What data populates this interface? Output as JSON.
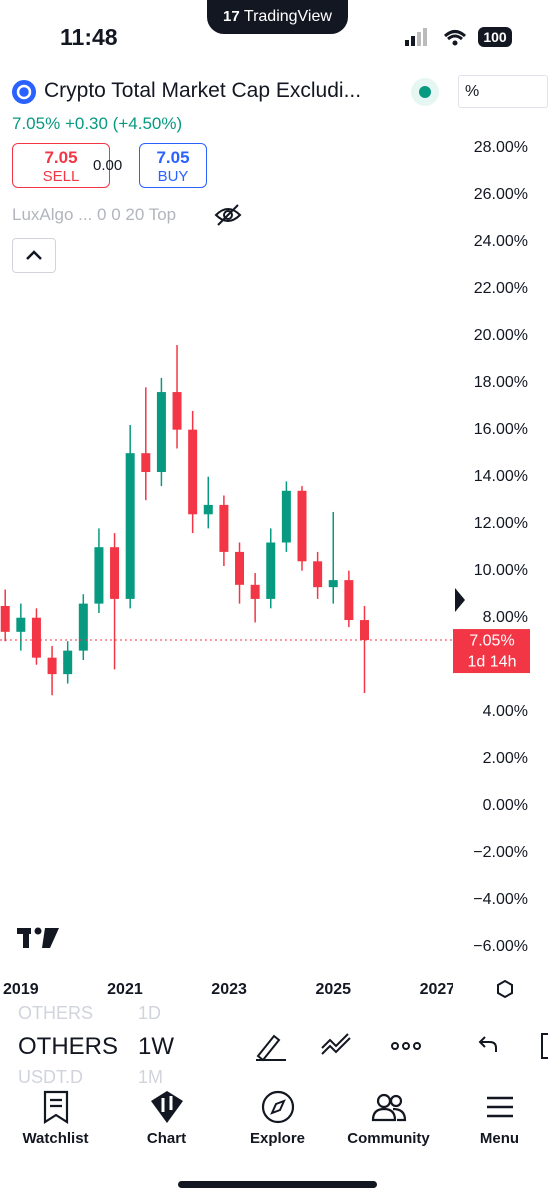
{
  "status_bar": {
    "time": "11:48",
    "battery": "100"
  },
  "app_badge": "TradingView",
  "header": {
    "symbol_title": "Crypto Total Market Cap Excludi...",
    "price": "7.05%",
    "change": "+0.30 (+4.50%)",
    "scale_button": "%"
  },
  "trade": {
    "sell_price": "7.05",
    "sell_label": "SELL",
    "spread": "0.00",
    "buy_price": "7.05",
    "buy_label": "BUY"
  },
  "indicator": "LuxAlgo ... 0 0 20 Top",
  "chart": {
    "type": "candlestick",
    "x": [
      2018.7,
      2019.0,
      2019.3,
      2019.6,
      2019.9,
      2020.2,
      2020.5,
      2020.8,
      2021.1,
      2021.4,
      2021.7,
      2022.0,
      2022.3,
      2022.6,
      2022.9,
      2023.2,
      2023.5,
      2023.8,
      2024.1,
      2024.4,
      2024.7,
      2025.0,
      2025.3,
      2025.6
    ],
    "open": [
      8.5,
      7.4,
      8.0,
      6.3,
      5.6,
      6.6,
      8.6,
      11.0,
      8.8,
      15.0,
      14.2,
      17.6,
      16.0,
      12.4,
      12.8,
      10.8,
      9.4,
      8.8,
      11.2,
      13.4,
      10.4,
      9.3,
      9.6,
      7.9
    ],
    "high": [
      9.2,
      8.6,
      8.4,
      6.8,
      7.0,
      9.0,
      11.8,
      11.6,
      16.2,
      17.8,
      18.2,
      19.6,
      16.8,
      14.0,
      13.2,
      11.2,
      9.9,
      11.8,
      13.8,
      13.6,
      10.8,
      12.5,
      10.0,
      8.5
    ],
    "low": [
      7.0,
      6.6,
      6.0,
      4.7,
      5.2,
      6.2,
      8.2,
      5.8,
      8.4,
      13.0,
      13.6,
      15.2,
      11.6,
      11.8,
      10.2,
      8.6,
      7.8,
      8.4,
      10.8,
      10.0,
      8.8,
      8.6,
      7.6,
      4.8
    ],
    "close": [
      7.4,
      8.0,
      6.3,
      5.6,
      6.6,
      8.6,
      11.0,
      8.8,
      15.0,
      14.2,
      17.6,
      16.0,
      12.4,
      12.8,
      10.8,
      9.4,
      8.8,
      11.2,
      13.4,
      10.4,
      9.3,
      9.6,
      7.9,
      7.05
    ],
    "up_color": "#089981",
    "down_color": "#f23645",
    "xlim": [
      2018.6,
      2027.3
    ],
    "xticks": [
      2019,
      2021,
      2023,
      2025,
      2027
    ],
    "ylim": [
      -7.2,
      29.6
    ],
    "yticks": [
      {
        "value": 28,
        "label": "28.00%"
      },
      {
        "value": 26,
        "label": "26.00%"
      },
      {
        "value": 24,
        "label": "24.00%"
      },
      {
        "value": 22,
        "label": "22.00%"
      },
      {
        "value": 20,
        "label": "20.00%"
      },
      {
        "value": 18,
        "label": "18.00%"
      },
      {
        "value": 16,
        "label": "16.00%"
      },
      {
        "value": 14,
        "label": "14.00%"
      },
      {
        "value": 12,
        "label": "12.00%"
      },
      {
        "value": 10,
        "label": "10.00%"
      },
      {
        "value": 8,
        "label": "8.00%"
      },
      {
        "value": 4,
        "label": "4.00%"
      },
      {
        "value": 2,
        "label": "2.00%"
      },
      {
        "value": 0,
        "label": "0.00%"
      },
      {
        "value": -2,
        "label": "−2.00%"
      },
      {
        "value": -4,
        "label": "−4.00%"
      },
      {
        "value": -6,
        "label": "−6.00%"
      }
    ],
    "last_price": {
      "value": 7.05,
      "label": "7.05%"
    },
    "countdown": "1d 14h"
  },
  "symbol_bar": {
    "prev": {
      "symbol": "OTHERS",
      "interval": "1D"
    },
    "current": {
      "symbol": "OTHERS",
      "interval": "1W"
    },
    "next": {
      "symbol": "USDT.D",
      "interval": "1M"
    }
  },
  "nav": [
    "Watchlist",
    "Chart",
    "Explore",
    "Community",
    "Menu"
  ]
}
